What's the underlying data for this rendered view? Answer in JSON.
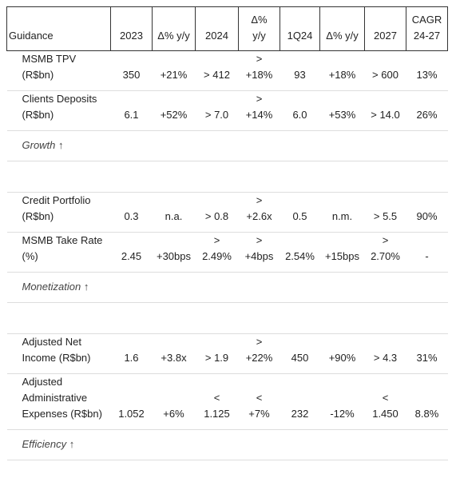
{
  "table": {
    "header": [
      "Guidance",
      "2023",
      "Δ% y/y",
      "2024",
      "Δ%\ny/y",
      "1Q24",
      "Δ% y/y",
      "2027",
      "CAGR\n24-27"
    ],
    "rows": [
      {
        "cells": [
          "MSMB TPV\n(R$bn)",
          "350",
          "+21%",
          "> 412",
          ">\n+18%",
          "93",
          "+18%",
          "> 600",
          "13%"
        ]
      },
      {
        "cells": [
          "Clients Deposits\n(R$bn)",
          "6.1",
          "+52%",
          "> 7.0",
          ">\n+14%",
          "6.0",
          "+53%",
          "> 14.0",
          "26%"
        ]
      },
      {
        "label": "Growth ↑"
      },
      {
        "cells": [
          "Credit Portfolio\n(R$bn)",
          "0.3",
          "n.a.",
          "> 0.8",
          ">\n+2.6x",
          "0.5",
          "n.m.",
          "> 5.5",
          "90%"
        ]
      },
      {
        "cells": [
          "MSMB Take Rate\n(%)",
          "2.45",
          "+30bps",
          ">\n2.49%",
          ">\n+4bps",
          "2.54%",
          "+15bps",
          ">\n2.70%",
          "-"
        ]
      },
      {
        "label": "Monetization ↑"
      },
      {
        "cells": [
          "Adjusted Net\nIncome (R$bn)",
          "1.6",
          "+3.8x",
          "> 1.9",
          ">\n+22%",
          "450",
          "+90%",
          "> 4.3",
          "31%"
        ]
      },
      {
        "cells": [
          "Adjusted\nAdministrative\nExpenses (R$bn)",
          "1.052",
          "+6%",
          "<\n1.125",
          "<\n+7%",
          "232",
          "-12%",
          "<\n1.450",
          "8.8%"
        ]
      },
      {
        "label": "Efficiency ↑"
      }
    ]
  }
}
